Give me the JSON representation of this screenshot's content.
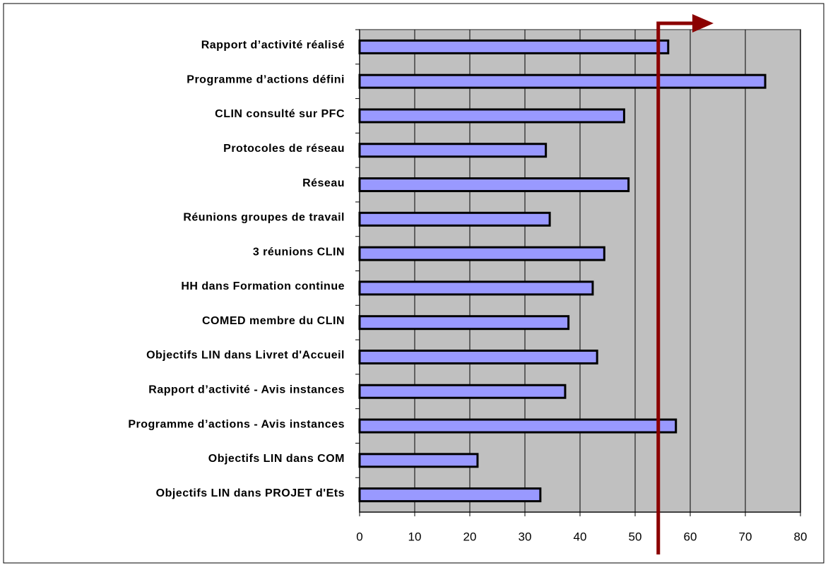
{
  "chart_data": {
    "type": "hbar",
    "categories": [
      "Rapport d’activité réalisé",
      "Programme d’actions défini",
      "CLIN consulté sur PFC",
      "Protocoles de réseau",
      "Réseau",
      "Réunions groupes de travail",
      "3 réunions CLIN",
      "HH dans Formation continue",
      "COMED membre du CLIN",
      "Objectifs LIN dans Livret d'Accueil",
      "Rapport d’activité - Avis instances",
      "Programme d’actions - Avis instances",
      "Objectifs LIN dans COM",
      "Objectifs LIN dans PROJET d'Ets"
    ],
    "values": [
      56,
      73.6,
      48,
      33.8,
      48.8,
      34.5,
      44.4,
      42.3,
      37.9,
      43.1,
      37.3,
      57.4,
      21.4,
      32.8
    ],
    "color": "#9999ff",
    "xlim": [
      0,
      80
    ],
    "xticks": [
      0,
      10,
      20,
      30,
      40,
      50,
      60,
      70,
      80
    ],
    "grid": true,
    "reference_line": 54.2,
    "reference_color": "#8b0000"
  }
}
